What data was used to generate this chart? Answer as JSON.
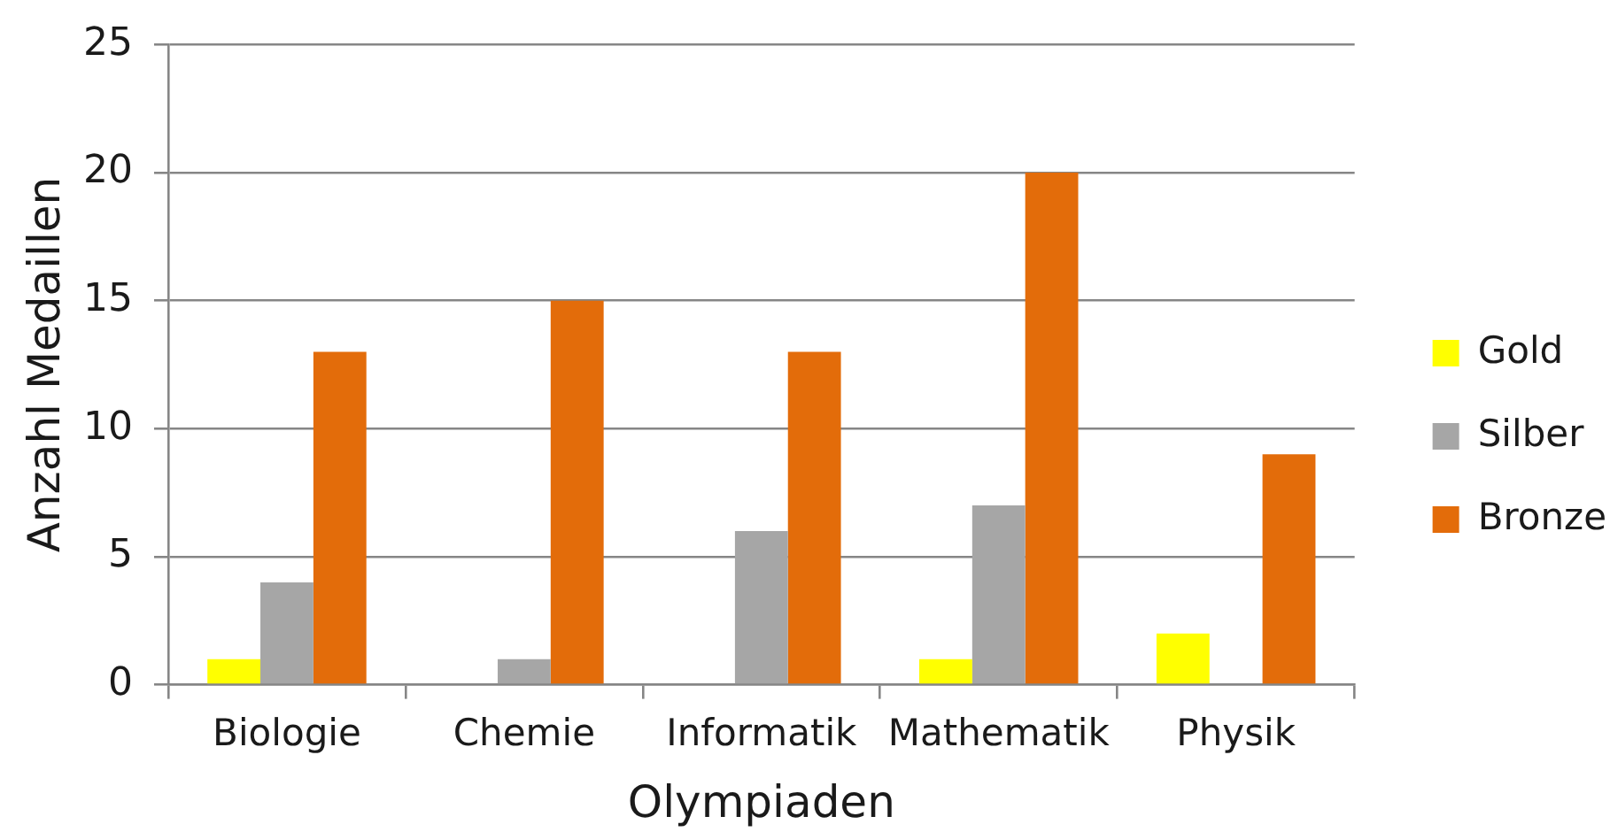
{
  "chart_data": {
    "type": "bar",
    "xlabel": "Olympiaden",
    "ylabel": "Anzahl Medaillen",
    "categories": [
      "Biologie",
      "Chemie",
      "Informatik",
      "Mathematik",
      "Physik"
    ],
    "series": [
      {
        "name": "Gold",
        "color": "#ffff00",
        "values": [
          1,
          0,
          0,
          1,
          2
        ]
      },
      {
        "name": "Silber",
        "color": "#a6a6a6",
        "values": [
          4,
          1,
          6,
          7,
          0
        ]
      },
      {
        "name": "Bronze",
        "color": "#e36c0a",
        "values": [
          13,
          15,
          13,
          20,
          9
        ]
      }
    ],
    "ylim": [
      0,
      25
    ],
    "yticks": [
      0,
      5,
      10,
      15,
      20,
      25
    ],
    "grid": "y",
    "legend": "right"
  }
}
